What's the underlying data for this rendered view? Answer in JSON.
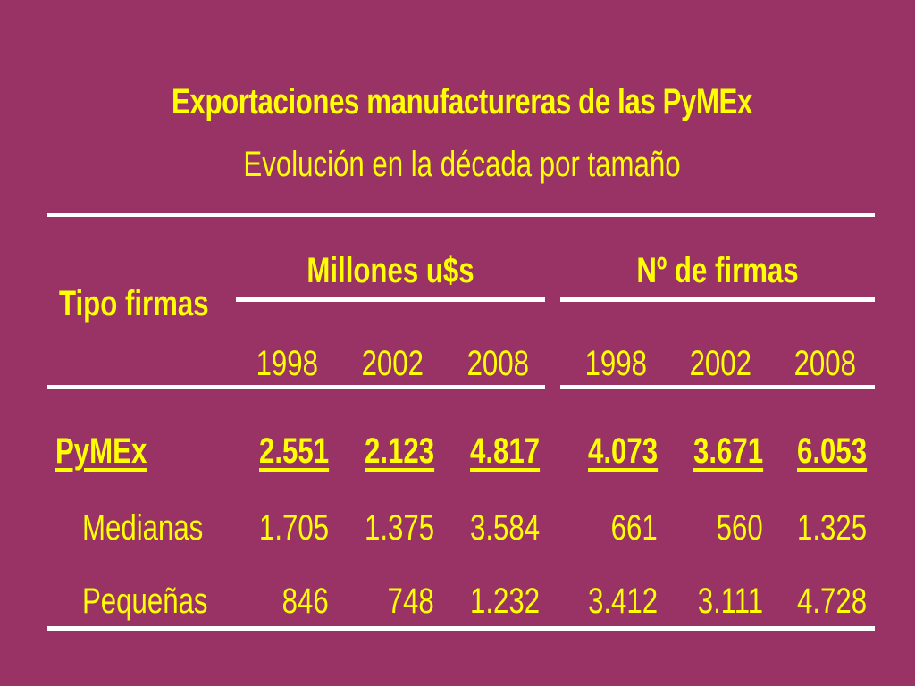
{
  "title": "Exportaciones manufactureras de las PyMEx",
  "subtitle": "Evolución en la década por tamaño",
  "table": {
    "row_header": "Tipo firmas",
    "group_millones": "Millones u$s",
    "group_firmas": "Nº de firmas",
    "years": [
      "1998",
      "2002",
      "2008",
      "1998",
      "2002",
      "2008"
    ],
    "rows": [
      {
        "label": "PyMEx",
        "values": [
          "2.551",
          "2.123",
          "4.817",
          "4.073",
          "3.671",
          "6.053"
        ]
      },
      {
        "label": "Medianas",
        "values": [
          "1.705",
          "1.375",
          "3.584",
          "661",
          "560",
          "1.325"
        ]
      },
      {
        "label": "Pequeñas",
        "values": [
          "846",
          "748",
          "1.232",
          "3.412",
          "3.111",
          "4.728"
        ]
      }
    ]
  },
  "colors": {
    "background": "#993366",
    "text": "#ffff00",
    "rules": "#ffffff"
  }
}
